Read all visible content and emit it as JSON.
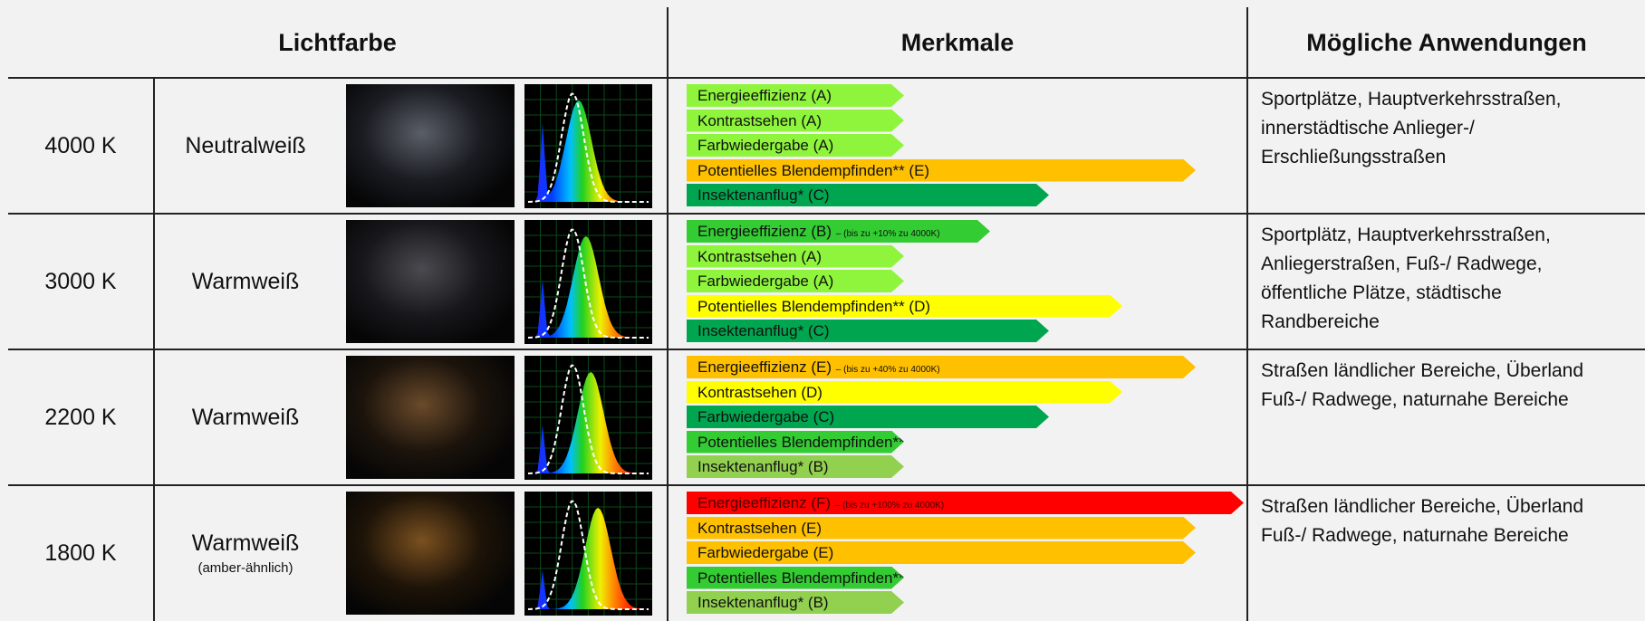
{
  "header": {
    "col1": "Lichtfarbe",
    "col2": "Merkmale",
    "col3": "Mögliche Anwendungen"
  },
  "rows": [
    {
      "temperature": "4000 K",
      "color": "Neutralweiß",
      "features": [
        {
          "text": "Energieeffizienz (A)"
        },
        {
          "text": "Kontrastsehen (A)"
        },
        {
          "text": "Farbwiedergabe (A)"
        },
        {
          "text": "Potentielles Blendempfinden** (E)"
        },
        {
          "text": "Insektenanflug* (C)"
        }
      ],
      "applications": [
        "Sportplätze, Hauptverkehrsstraßen,",
        "innerstädtische Anlieger-/",
        "Erschließungsstraßen"
      ]
    },
    {
      "temperature": "3000 K",
      "color": "Warmweiß",
      "features": [
        {
          "text": "Energieeffizienz (B)",
          "note": "– (bis zu +10% zu 4000K)"
        },
        {
          "text": "Kontrastsehen (A)"
        },
        {
          "text": "Farbwiedergabe (A)"
        },
        {
          "text": "Potentielles Blendempfinden** (D)"
        },
        {
          "text": "Insektenanflug* (C)"
        }
      ],
      "applications": [
        "Sportplätz, Hauptverkehrsstraßen,",
        "Anliegerstraßen, Fuß-/ Radwege,",
        "öffentliche Plätze, städtische",
        "Randbereiche"
      ]
    },
    {
      "temperature": "2200 K",
      "color": "Warmweiß",
      "features": [
        {
          "text": "Energieeffizienz (E)",
          "note": "– (bis zu +40% zu 4000K)"
        },
        {
          "text": "Kontrastsehen (D)"
        },
        {
          "text": "Farbwiedergabe (C)"
        },
        {
          "text": "Potentielles Blendempfinden** (B)"
        },
        {
          "text": "Insektenanflug* (B)"
        }
      ],
      "applications": [
        "Straßen ländlicher Bereiche, Überland",
        "Fuß-/ Radwege, naturnahe Bereiche"
      ]
    },
    {
      "temperature": "1800 K",
      "color": "Warmweiß",
      "color_note": "(amber-ähnlich)",
      "features": [
        {
          "text": "Energieeffizienz (F)",
          "note": "– (bis zu +100% zu 4000K)"
        },
        {
          "text": "Kontrastsehen (E)"
        },
        {
          "text": "Farbwiedergabe (E)"
        },
        {
          "text": "Potentielles Blendempfinden** (B)"
        },
        {
          "text": "Insektenanflug* (B)"
        }
      ],
      "applications": [
        "Straßen ländlicher Bereiche, Überland",
        "Fuß-/ Radwege, naturnahe Bereiche"
      ]
    }
  ]
}
